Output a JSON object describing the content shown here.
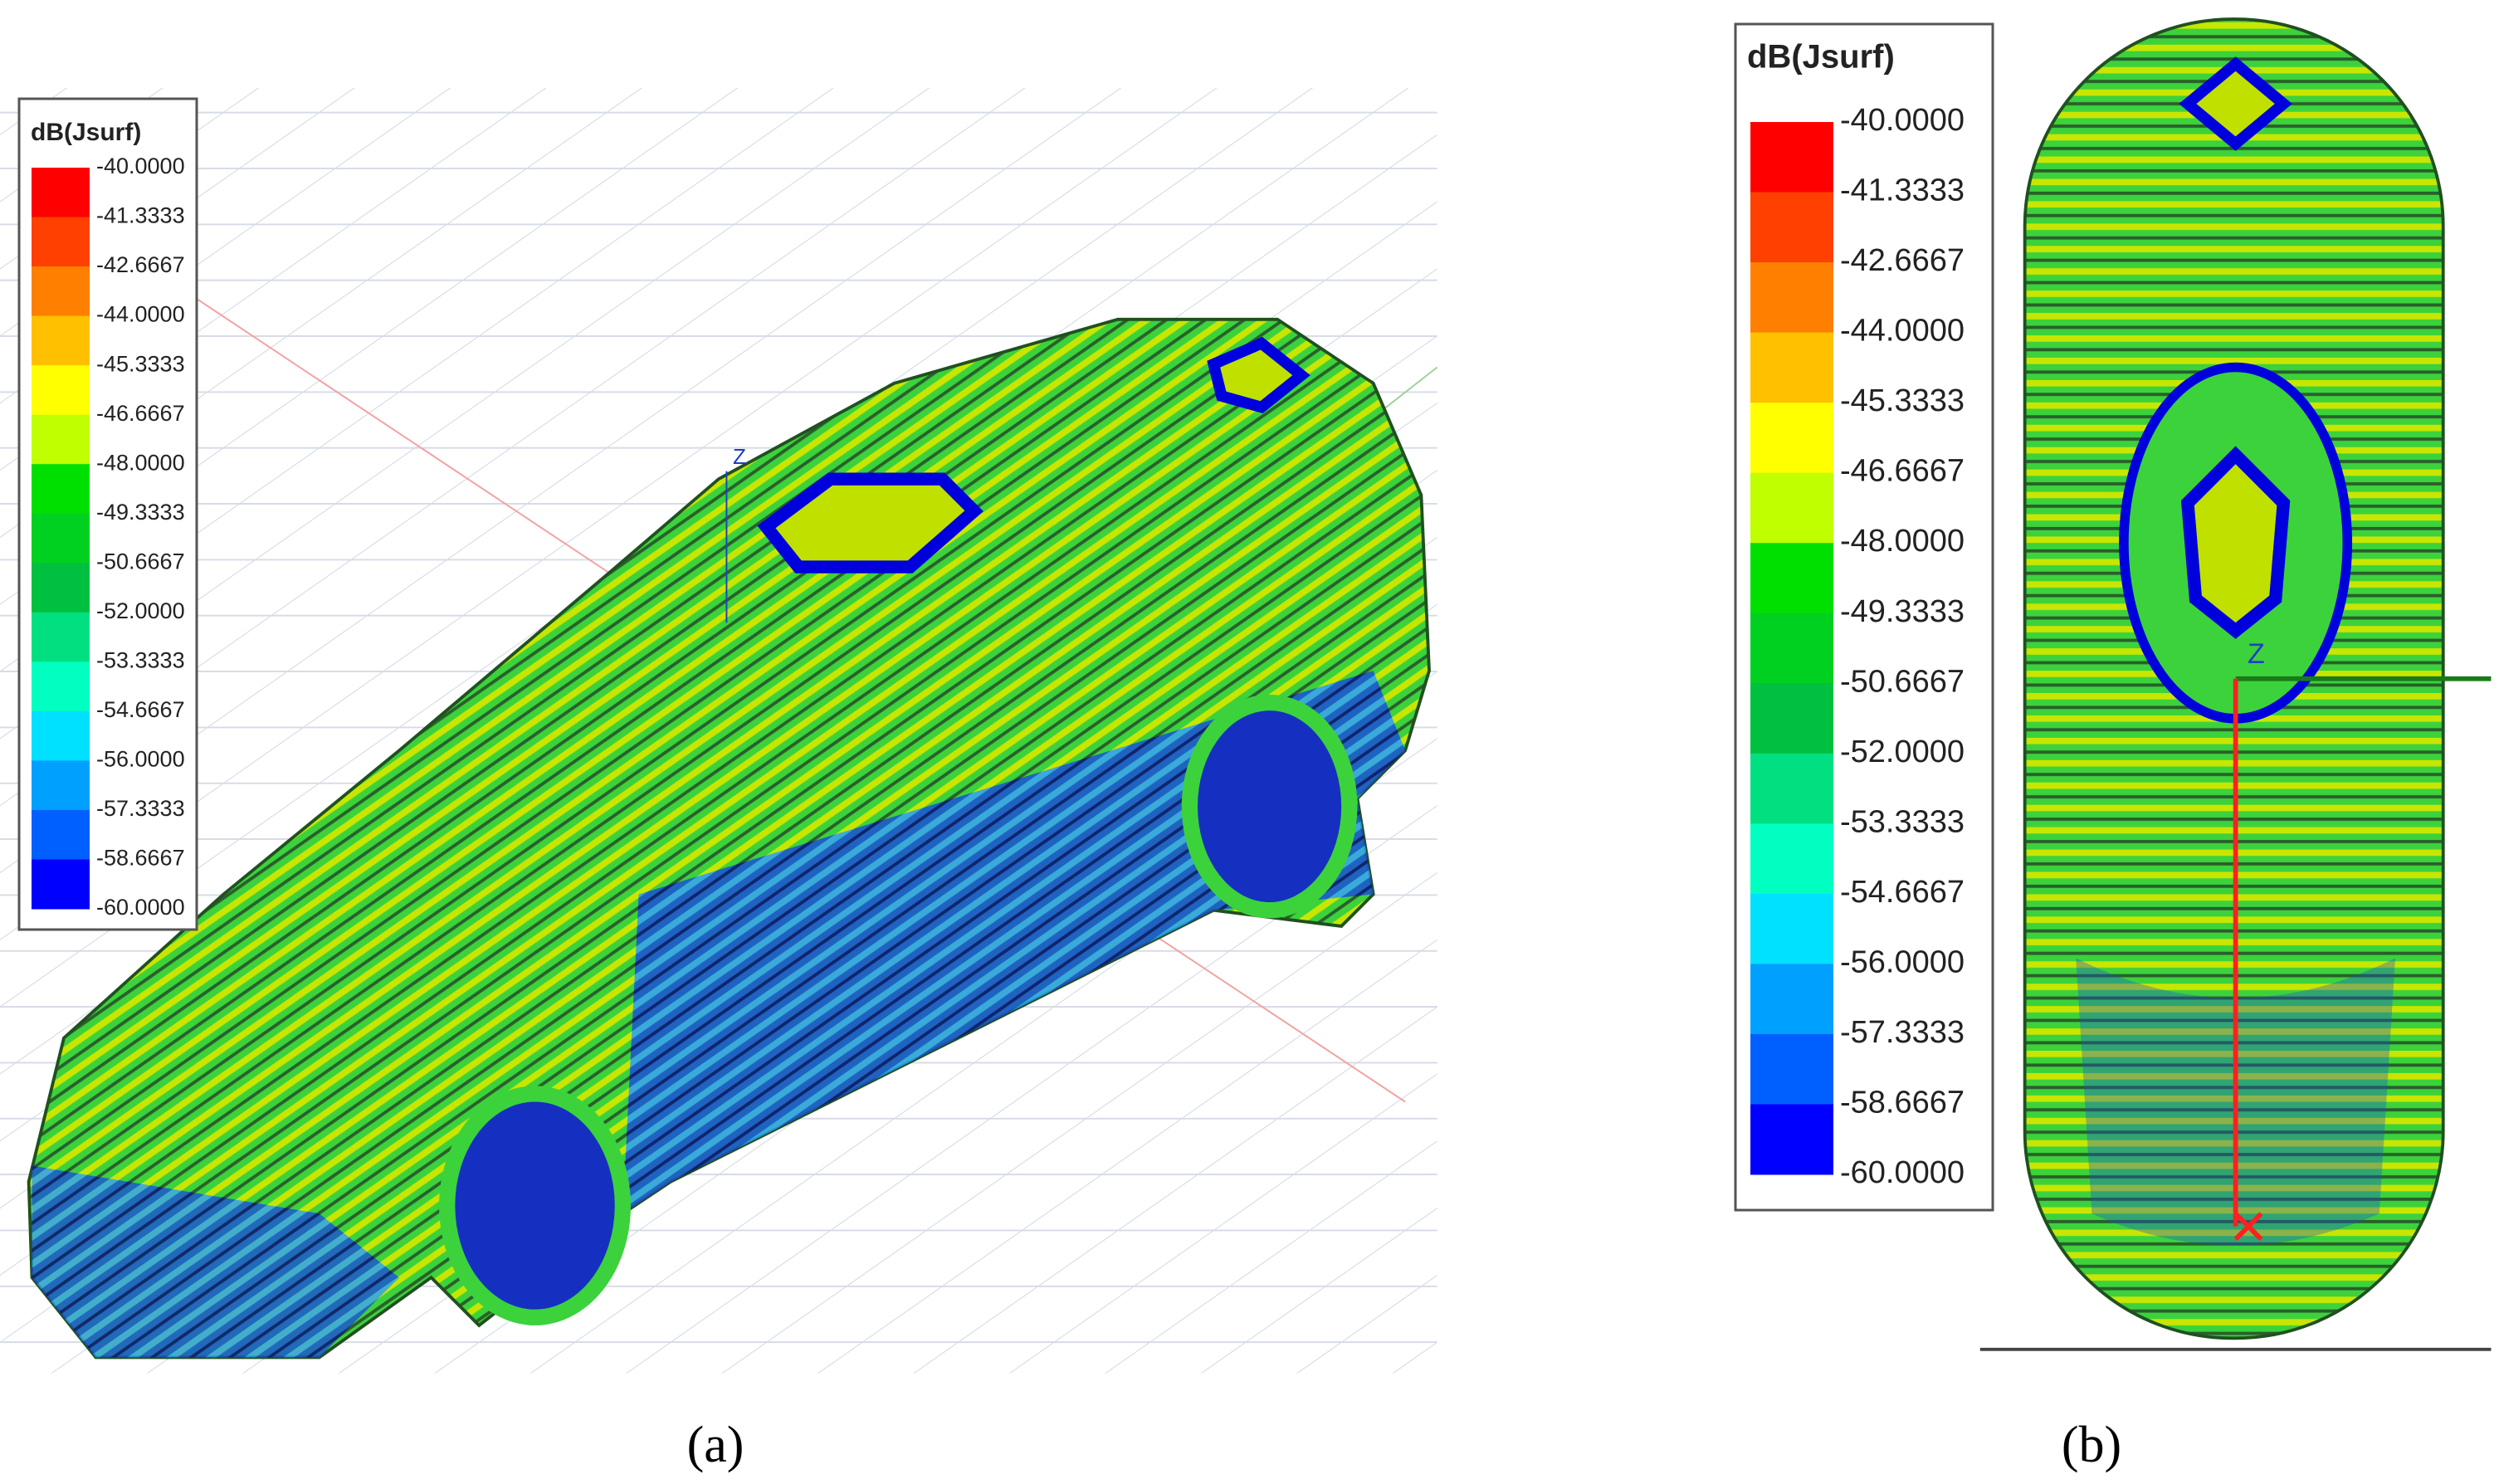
{
  "panels": [
    {
      "caption": "(a)",
      "axis_label": "Z",
      "legend": {
        "title": "dB(Jsurf)",
        "labels": [
          "-40.0000",
          "-41.3333",
          "-42.6667",
          "-44.0000",
          "-45.3333",
          "-46.6667",
          "-48.0000",
          "-49.3333",
          "-50.6667",
          "-52.0000",
          "-53.3333",
          "-54.6667",
          "-56.0000",
          "-57.3333",
          "-58.6667",
          "-60.0000"
        ],
        "colors": [
          "#ff0000",
          "#ff4000",
          "#ff8000",
          "#ffc000",
          "#ffff00",
          "#c0ff00",
          "#00e000",
          "#00d020",
          "#00c040",
          "#00e080",
          "#00ffc0",
          "#00e0ff",
          "#00a0ff",
          "#0060ff",
          "#0000ff"
        ]
      }
    },
    {
      "caption": "(b)",
      "axis_label": "Z",
      "legend": {
        "title": "dB(Jsurf)",
        "labels": [
          "-40.0000",
          "-41.3333",
          "-42.6667",
          "-44.0000",
          "-45.3333",
          "-46.6667",
          "-48.0000",
          "-49.3333",
          "-50.6667",
          "-52.0000",
          "-53.3333",
          "-54.6667",
          "-56.0000",
          "-57.3333",
          "-58.6667",
          "-60.0000"
        ],
        "colors": [
          "#ff0000",
          "#ff4000",
          "#ff8000",
          "#ffc000",
          "#ffff00",
          "#c0ff00",
          "#00e000",
          "#00d020",
          "#00c040",
          "#00e080",
          "#00ffc0",
          "#00e0ff",
          "#00a0ff",
          "#0060ff",
          "#0000ff"
        ]
      }
    }
  ]
}
